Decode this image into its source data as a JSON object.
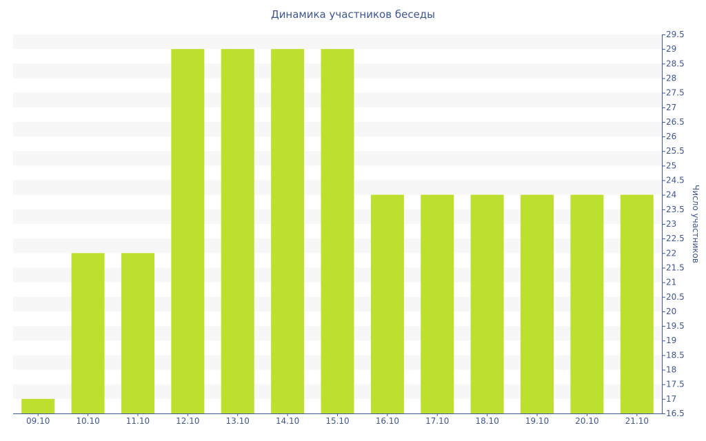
{
  "chart_data": {
    "type": "bar",
    "title": "Динамика участников беседы",
    "xlabel": "",
    "ylabel": "Число участников",
    "categories": [
      "09.10",
      "10.10",
      "11.10",
      "12.10",
      "13.10",
      "14.10",
      "15.10",
      "16.10",
      "17.10",
      "18.10",
      "19.10",
      "20.10",
      "21.10"
    ],
    "values": [
      17,
      22,
      22,
      29,
      29,
      29,
      29,
      24,
      24,
      24,
      24,
      24,
      24
    ],
    "ylim": [
      16.5,
      29.5
    ],
    "ytick_step": 0.5,
    "yaxis_position": "right",
    "grid": "alternating horizontal bands",
    "legend": "none",
    "colors": {
      "bar": "#bde02e",
      "band": "#f7f7f7",
      "axis": "#3e5594"
    }
  }
}
